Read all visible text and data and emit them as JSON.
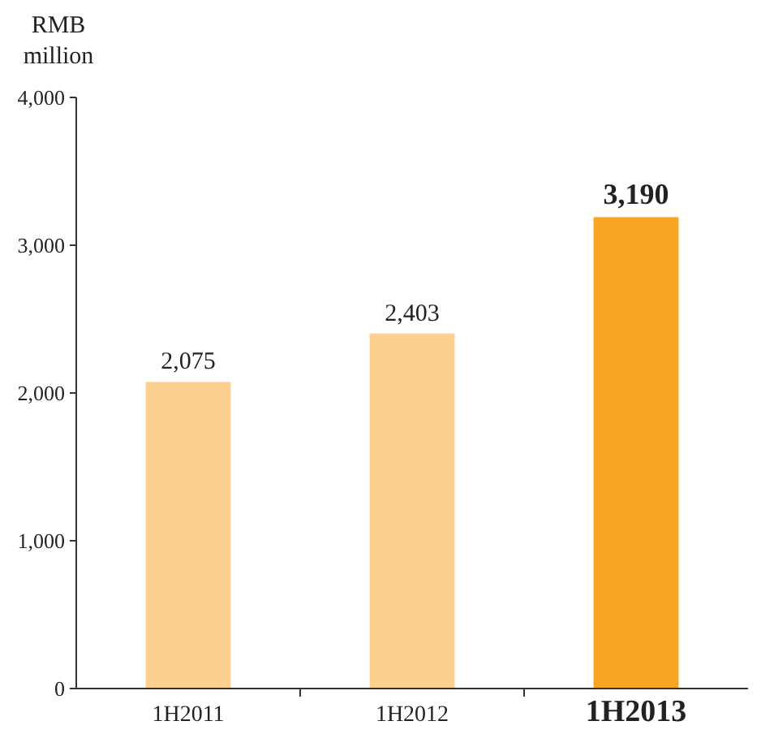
{
  "chart_data": {
    "type": "bar",
    "ylabel": "RMB\nmillion",
    "categories": [
      "1H2011",
      "1H2012",
      "1H2013"
    ],
    "values": [
      2075,
      2403,
      3190
    ],
    "colors": [
      "#fdd08f",
      "#fdd08f",
      "#f6a623"
    ],
    "value_labels": [
      "2,075",
      "2,403",
      "3,190"
    ],
    "ylim": [
      0,
      4000
    ],
    "yticks": [
      {
        "value": 0,
        "label": "0"
      },
      {
        "value": 1000,
        "label": "1,000"
      },
      {
        "value": 2000,
        "label": "2,000"
      },
      {
        "value": 3000,
        "label": "3,000"
      },
      {
        "value": 4000,
        "label": "4,000"
      }
    ]
  }
}
